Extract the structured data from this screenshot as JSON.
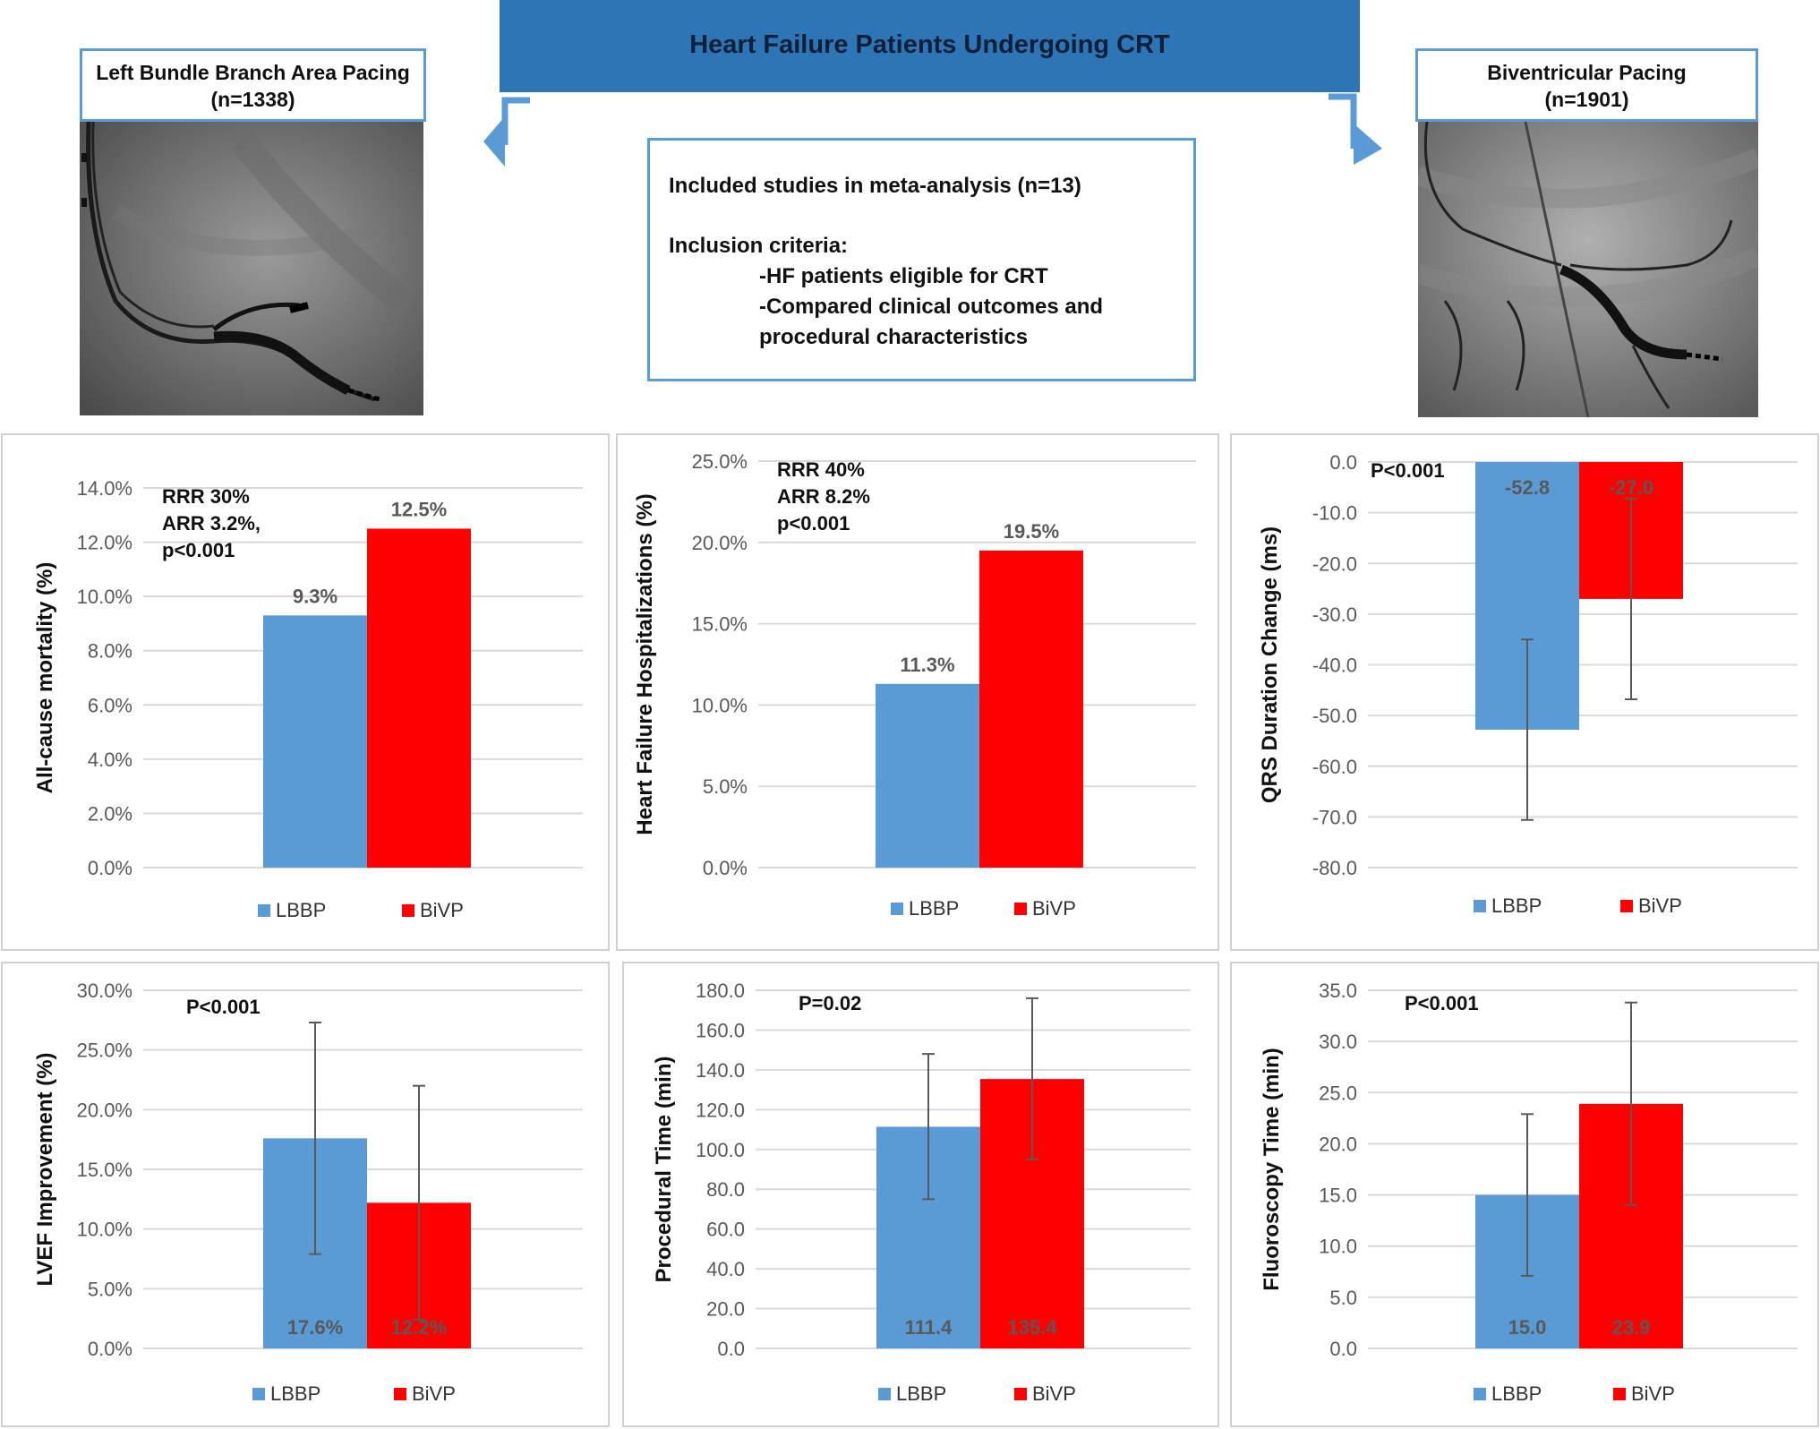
{
  "header": {
    "title": "Heart Failure Patients Undergoing CRT"
  },
  "left_group": {
    "name": "Left Bundle Branch Area Pacing",
    "n": "(n=1338)"
  },
  "right_group": {
    "name": "Biventricular Pacing",
    "n": "(n=1901)"
  },
  "criteria": {
    "studies": "Included studies in meta-analysis (n=13)",
    "heading": "Inclusion criteria:",
    "items": [
      "-HF patients eligible for CRT",
      "-Compared clinical outcomes and",
      "procedural characteristics"
    ]
  },
  "colors": {
    "lbbp": "#5b9bd5",
    "bivp": "#ff0000",
    "accent": "#2e75b6"
  },
  "chart_data": [
    {
      "type": "bar",
      "ylabel": "All-cause mortality (%)",
      "ylim": [
        0,
        14
      ],
      "yticks": [
        "0.0%",
        "2.0%",
        "4.0%",
        "6.0%",
        "8.0%",
        "10.0%",
        "12.0%",
        "14.0%"
      ],
      "ytick_values": [
        0,
        2,
        4,
        6,
        8,
        10,
        12,
        14
      ],
      "categories": [
        "LBBP",
        "BiVP"
      ],
      "values": [
        9.3,
        12.5
      ],
      "value_labels": [
        "9.3%",
        "12.5%"
      ],
      "label_position": "above",
      "annotation": [
        "RRR 30%",
        "ARR 3.2%,",
        "p<0.001"
      ],
      "legend": [
        "LBBP",
        "BiVP"
      ]
    },
    {
      "type": "bar",
      "ylabel": "Heart Failure Hospitalizations (%)",
      "ylim": [
        0,
        25
      ],
      "yticks": [
        "0.0%",
        "5.0%",
        "10.0%",
        "15.0%",
        "20.0%",
        "25.0%"
      ],
      "ytick_values": [
        0,
        5,
        10,
        15,
        20,
        25
      ],
      "categories": [
        "LBBP",
        "BiVP"
      ],
      "values": [
        11.3,
        19.5
      ],
      "value_labels": [
        "11.3%",
        "19.5%"
      ],
      "label_position": "above",
      "annotation": [
        "RRR 40%",
        "ARR 8.2%",
        "p<0.001"
      ],
      "legend": [
        "LBBP",
        "BiVP"
      ]
    },
    {
      "type": "bar",
      "ylabel": "QRS Duration Change (ms)",
      "ylim": [
        -80,
        0
      ],
      "yticks": [
        "0.0",
        "-10.0",
        "-20.0",
        "-30.0",
        "-40.0",
        "-50.0",
        "-60.0",
        "-70.0",
        "-80.0"
      ],
      "ytick_values": [
        0,
        -10,
        -20,
        -30,
        -40,
        -50,
        -60,
        -70,
        -80
      ],
      "categories": [
        "LBBP",
        "BiVP"
      ],
      "values": [
        -52.8,
        -27.0
      ],
      "error_low": [
        -70.6,
        -46.8
      ],
      "error_high": [
        -35.0,
        -7.2
      ],
      "value_labels": [
        "-52.8",
        "-27.0"
      ],
      "label_position": "top-inside",
      "annotation": [
        "P<0.001"
      ],
      "legend": [
        "LBBP",
        "BiVP"
      ]
    },
    {
      "type": "bar",
      "ylabel": "LVEF Improvement (%)",
      "ylim": [
        0,
        30
      ],
      "yticks": [
        "0.0%",
        "5.0%",
        "10.0%",
        "15.0%",
        "20.0%",
        "25.0%",
        "30.0%"
      ],
      "ytick_values": [
        0,
        5,
        10,
        15,
        20,
        25,
        30
      ],
      "categories": [
        "LBBP",
        "BiVP"
      ],
      "values": [
        17.6,
        12.2
      ],
      "error_low": [
        7.9,
        2.4
      ],
      "error_high": [
        27.3,
        22.0
      ],
      "value_labels": [
        "17.6%",
        "12.2%"
      ],
      "label_position": "bottom-inside",
      "annotation": [
        "P<0.001"
      ],
      "legend": [
        "LBBP",
        "BiVP"
      ]
    },
    {
      "type": "bar",
      "ylabel": "Procedural Time (min)",
      "ylim": [
        0,
        180
      ],
      "yticks": [
        "0.0",
        "20.0",
        "40.0",
        "60.0",
        "80.0",
        "100.0",
        "120.0",
        "140.0",
        "160.0",
        "180.0"
      ],
      "ytick_values": [
        0,
        20,
        40,
        60,
        80,
        100,
        120,
        140,
        160,
        180
      ],
      "categories": [
        "LBBP",
        "BiVP"
      ],
      "values": [
        111.4,
        135.4
      ],
      "error_low": [
        75.0,
        95.0
      ],
      "error_high": [
        148.0,
        176.0
      ],
      "value_labels": [
        "111.4",
        "135.4"
      ],
      "label_position": "bottom-inside",
      "annotation": [
        "P=0.02"
      ],
      "legend": [
        "LBBP",
        "BiVP"
      ]
    },
    {
      "type": "bar",
      "ylabel": "Fluoroscopy Time (min)",
      "ylim": [
        0,
        35
      ],
      "yticks": [
        "0.0",
        "5.0",
        "10.0",
        "15.0",
        "20.0",
        "25.0",
        "30.0",
        "35.0"
      ],
      "ytick_values": [
        0,
        5,
        10,
        15,
        20,
        25,
        30,
        35
      ],
      "categories": [
        "LBBP",
        "BiVP"
      ],
      "values": [
        15.0,
        23.9
      ],
      "error_low": [
        7.1,
        14.0
      ],
      "error_high": [
        22.9,
        33.8
      ],
      "value_labels": [
        "15.0",
        "23.9"
      ],
      "label_position": "bottom-inside",
      "annotation": [
        "P<0.001"
      ],
      "legend": [
        "LBBP",
        "BiVP"
      ]
    }
  ]
}
